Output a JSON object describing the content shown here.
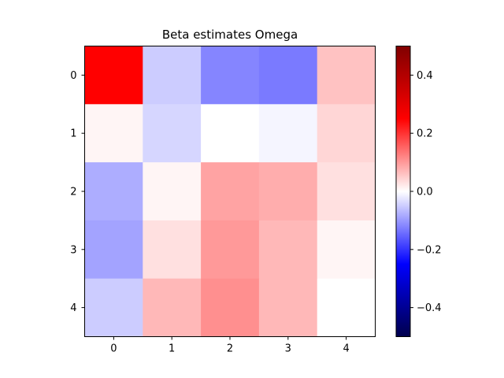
{
  "chart_data": {
    "type": "heatmap",
    "title": "Beta estimates Omega",
    "xlabel": "",
    "ylabel": "",
    "x_ticks": [
      "0",
      "1",
      "2",
      "3",
      "4"
    ],
    "y_ticks": [
      "0",
      "1",
      "2",
      "3",
      "4"
    ],
    "values": [
      [
        0.25,
        -0.05,
        -0.12,
        -0.13,
        0.06
      ],
      [
        0.01,
        -0.04,
        0.0,
        -0.01,
        0.04
      ],
      [
        -0.08,
        0.01,
        0.09,
        0.08,
        0.03
      ],
      [
        -0.09,
        0.03,
        0.1,
        0.07,
        0.01
      ],
      [
        -0.05,
        0.07,
        0.11,
        0.07,
        0.0
      ]
    ],
    "colormap": "seismic",
    "vmin": -0.5,
    "vmax": 0.5,
    "colorbar": {
      "ticks": [
        -0.4,
        -0.2,
        0.0,
        0.2,
        0.4
      ],
      "tick_labels": [
        "−0.4",
        "−0.2",
        "0.0",
        "0.2",
        "0.4"
      ]
    },
    "grid": false
  }
}
